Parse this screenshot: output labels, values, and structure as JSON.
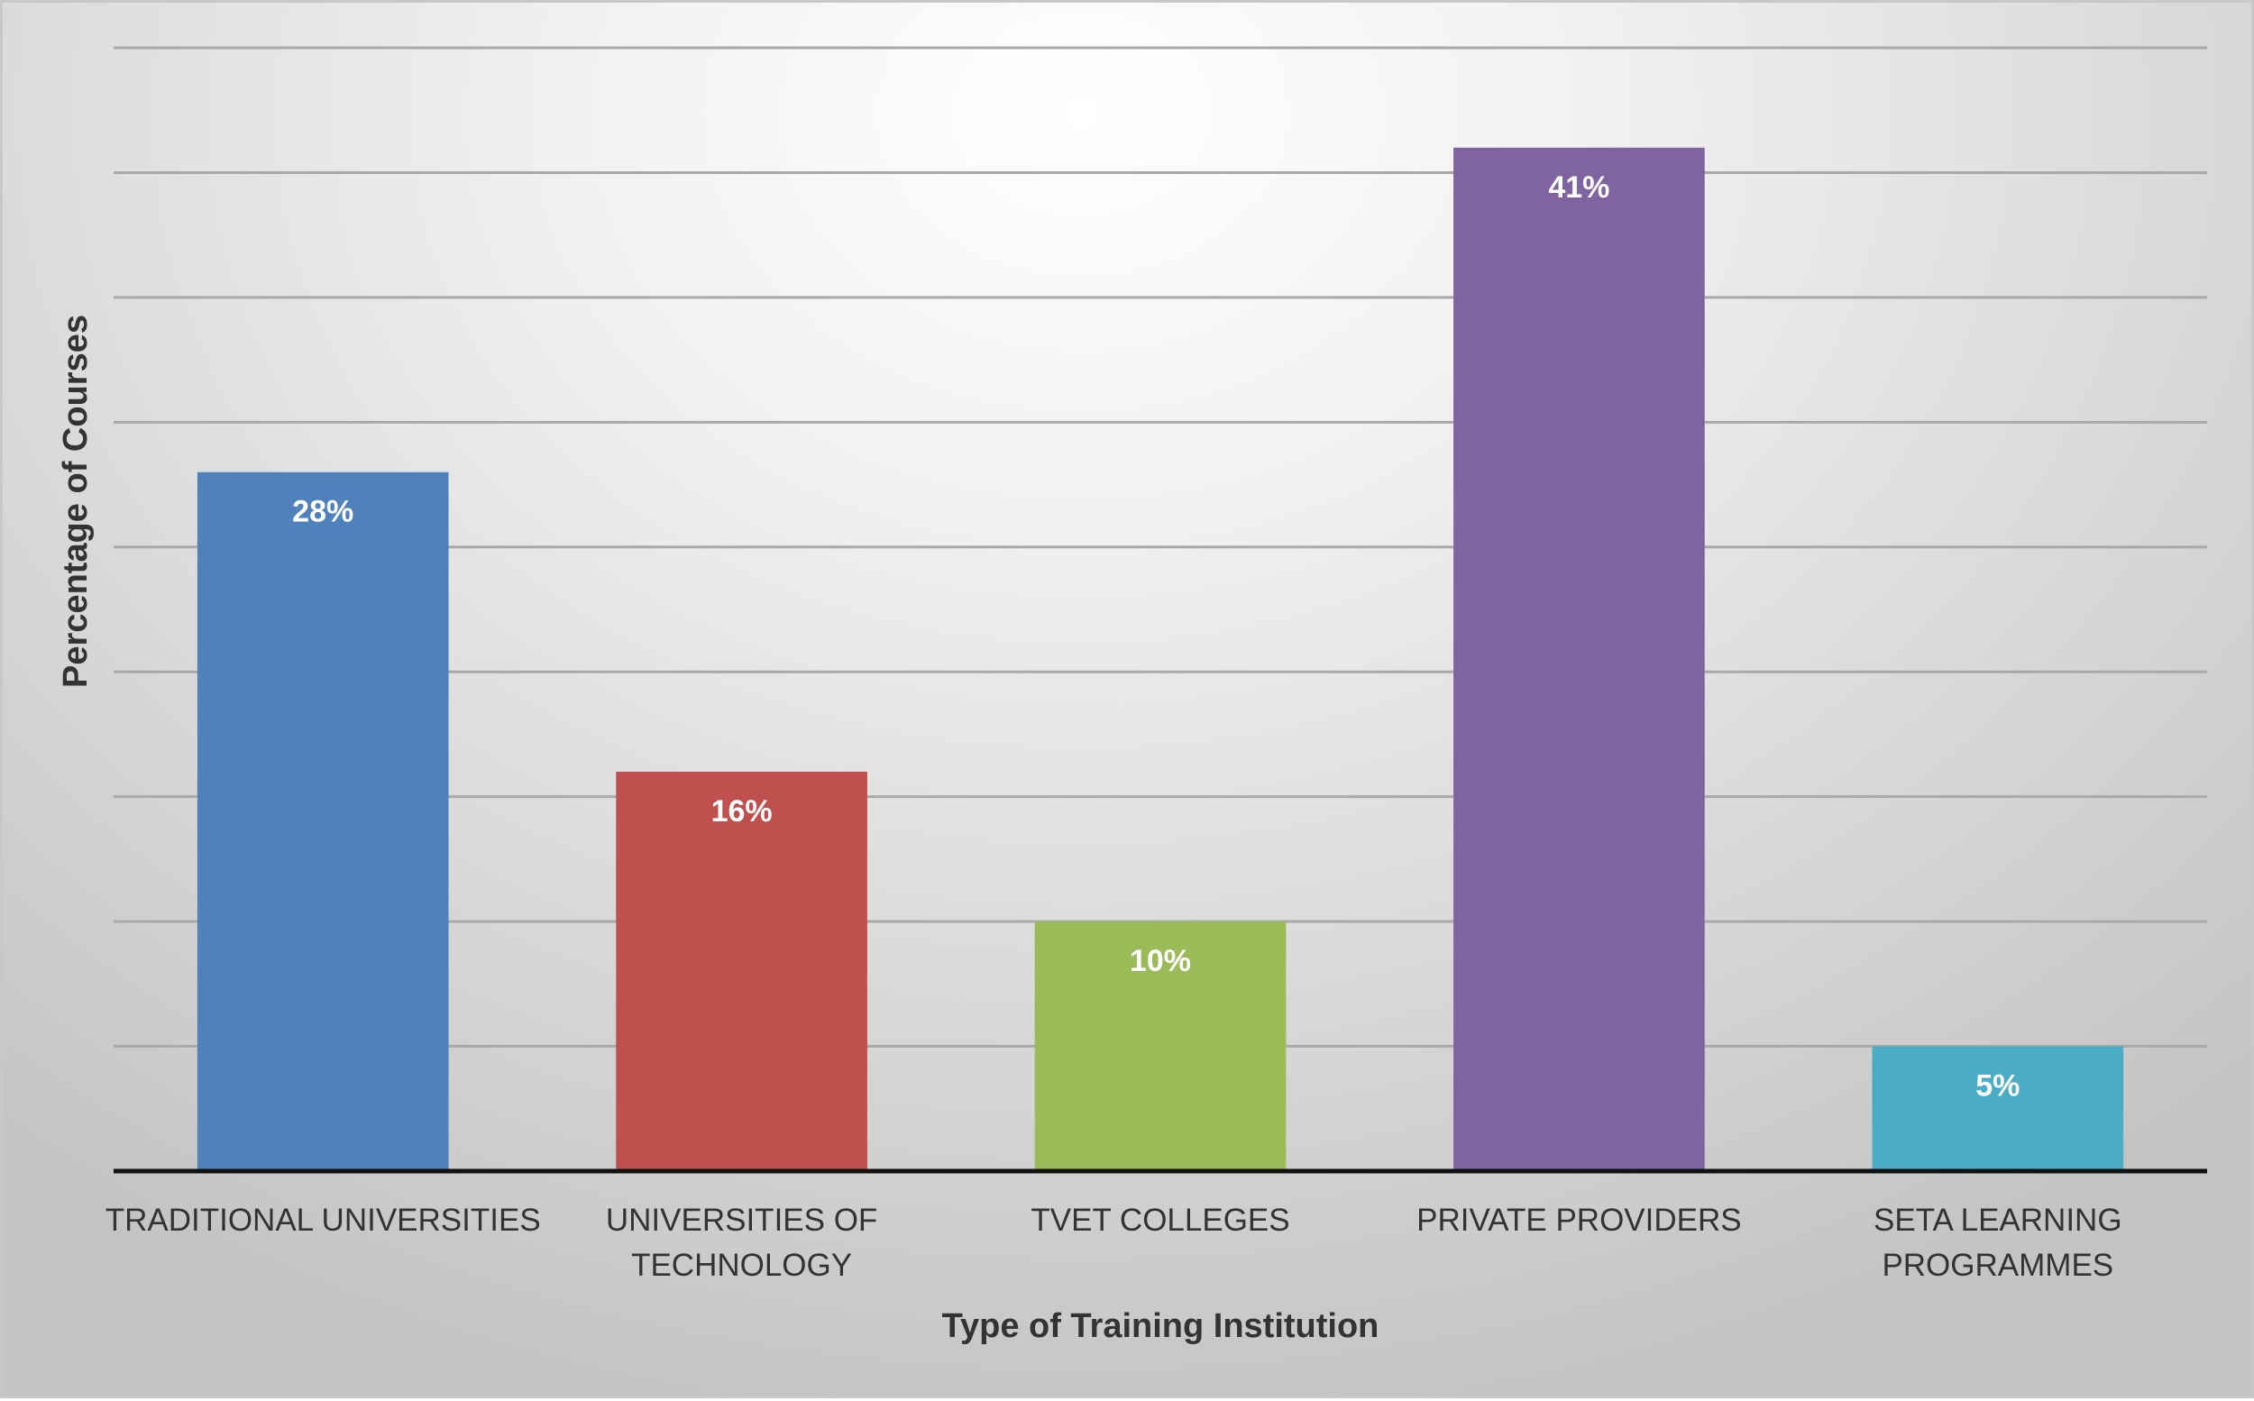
{
  "chart_data": {
    "type": "bar",
    "xlabel": "Type of Training Institution",
    "ylabel": "Percentage of Courses",
    "categories": [
      [
        "TRADITIONAL UNIVERSITIES"
      ],
      [
        "UNIVERSITIES OF",
        "TECHNOLOGY"
      ],
      [
        "TVET COLLEGES"
      ],
      [
        "PRIVATE PROVIDERS"
      ],
      [
        "SETA LEARNING",
        "PROGRAMMES"
      ]
    ],
    "values": [
      28,
      16,
      10,
      41,
      5
    ],
    "value_labels": [
      "28%",
      "16%",
      "10%",
      "41%",
      "5%"
    ],
    "colors": [
      "#4f81bd",
      "#c0504d",
      "#9bbb59",
      "#8064a2",
      "#4bacc6"
    ],
    "ylim": [
      0,
      45
    ],
    "grid_step": 5,
    "grid": true,
    "legend": "none"
  }
}
